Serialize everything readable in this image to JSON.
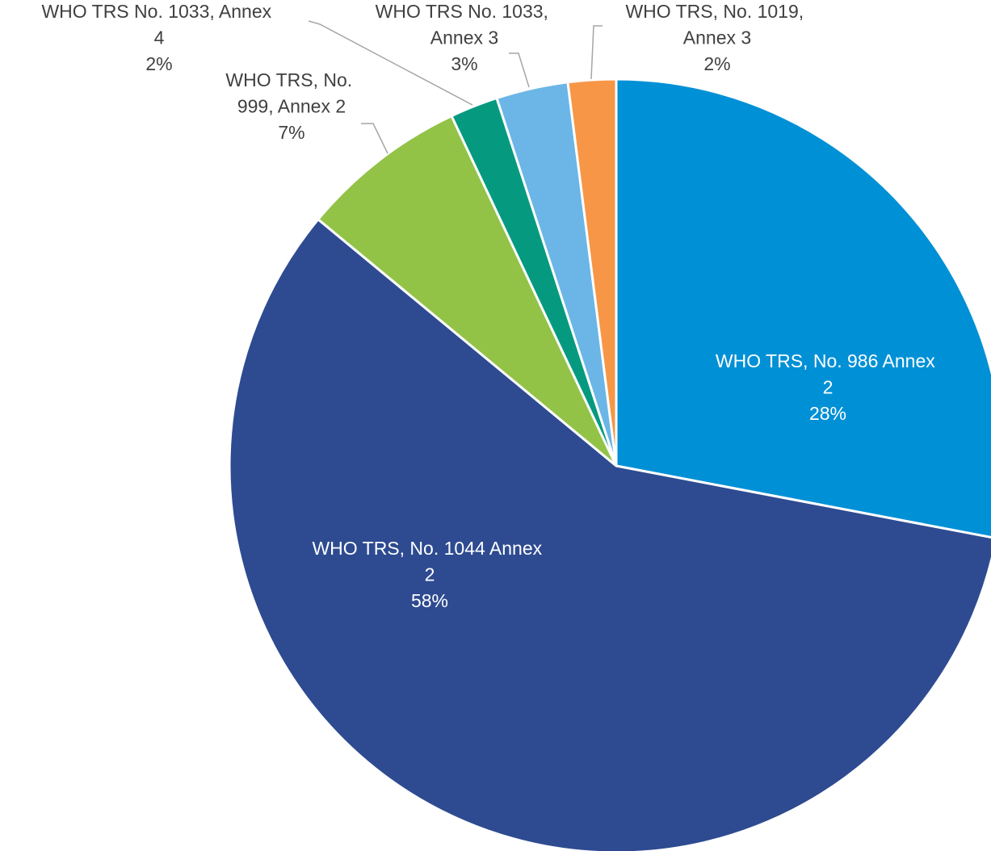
{
  "chart_data": {
    "type": "pie",
    "categories": [
      "WHO TRS, No. 986 Annex 2",
      "WHO TRS, No. 1044 Annex 2",
      "WHO TRS, No. 999, Annex 2",
      "WHO TRS No. 1033, Annex 4",
      "WHO TRS No. 1033, Annex 3",
      "WHO TRS, No. 1019, Annex 3"
    ],
    "values": [
      28,
      58,
      7,
      2,
      3,
      2
    ],
    "value_labels": [
      "28%",
      "58%",
      "7%",
      "2%",
      "3%",
      "2%"
    ],
    "colors": [
      "#0090d6",
      "#2e4b91",
      "#92c347",
      "#059a80",
      "#6bb6e6",
      "#f79646"
    ]
  }
}
